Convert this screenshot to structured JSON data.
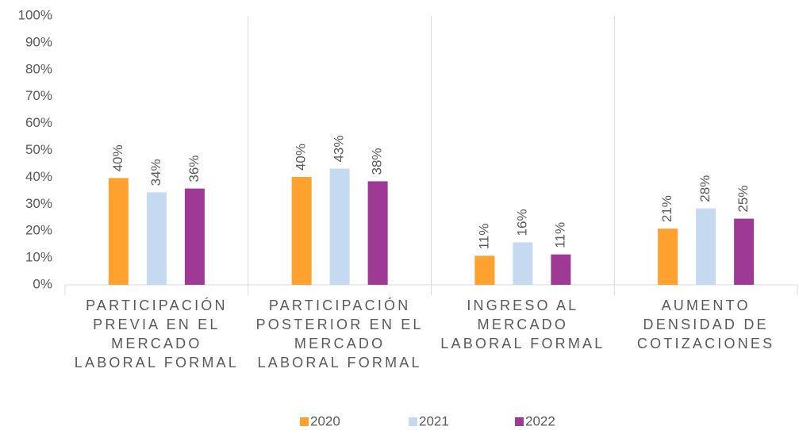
{
  "chart_data": {
    "type": "bar",
    "categories": [
      "PARTICIPACIÓN PREVIA EN EL MERCADO LABORAL FORMAL",
      "PARTICIPACIÓN POSTERIOR EN EL MERCADO LABORAL FORMAL",
      "INGRESO AL MERCADO LABORAL FORMAL",
      "AUMENTO DENSIDAD DE COTIZACIONES"
    ],
    "series": [
      {
        "name": "2020",
        "color": "#ffa12f",
        "values": [
          39.7,
          40.1,
          10.8,
          20.9
        ],
        "value_labels": [
          "40%",
          "40%",
          "11%",
          "21%"
        ]
      },
      {
        "name": "2021",
        "color": "#c5d9f1",
        "values": [
          34.4,
          43.2,
          15.8,
          28.4
        ],
        "value_labels": [
          "34%",
          "43%",
          "16%",
          "28%"
        ]
      },
      {
        "name": "2022",
        "color": "#9e3a96",
        "values": [
          35.8,
          38.5,
          11.3,
          24.6
        ],
        "value_labels": [
          "36%",
          "38%",
          "11%",
          "25%"
        ]
      }
    ],
    "ylim": [
      0,
      100
    ],
    "yticks": [
      {
        "value": 0,
        "label": "0%"
      },
      {
        "value": 10,
        "label": "10%"
      },
      {
        "value": 20,
        "label": "20%"
      },
      {
        "value": 30,
        "label": "30%"
      },
      {
        "value": 40,
        "label": "40%"
      },
      {
        "value": 50,
        "label": "50%"
      },
      {
        "value": 60,
        "label": "60%"
      },
      {
        "value": 70,
        "label": "70%"
      },
      {
        "value": 80,
        "label": "80%"
      },
      {
        "value": 90,
        "label": "90%"
      },
      {
        "value": 100,
        "label": "100%"
      }
    ],
    "grid": false,
    "legend": "bottom"
  }
}
